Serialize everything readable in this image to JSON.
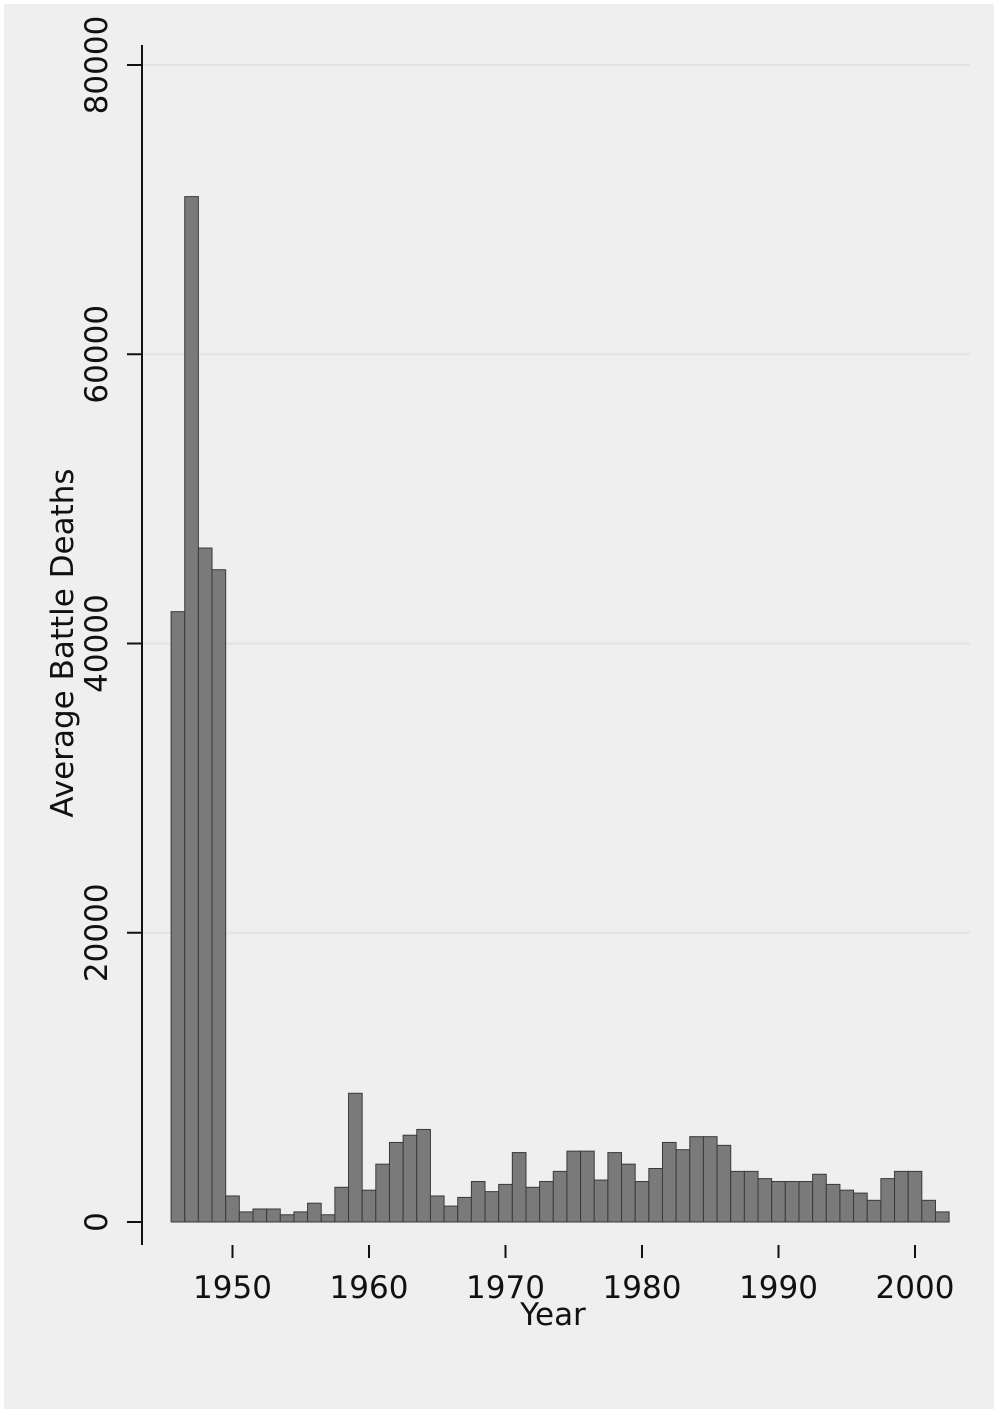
{
  "chart_data": {
    "type": "bar",
    "title": "",
    "xlabel": "Year",
    "ylabel": "Average Battle Deaths",
    "xlim": [
      1945.5,
      2002.5
    ],
    "ylim": [
      0,
      80000
    ],
    "x_ticks": [
      1950,
      1960,
      1970,
      1980,
      1990,
      2000
    ],
    "y_ticks": [
      0,
      20000,
      40000,
      60000,
      80000
    ],
    "grid": true,
    "legend": "none",
    "colors": {
      "bar": "#7a7a7a",
      "bar_edge": "#3a3a3a",
      "background": "#efefef",
      "grid": "#e3e3e3",
      "axis": "#111111"
    },
    "x": [
      1946,
      1947,
      1948,
      1949,
      1950,
      1951,
      1952,
      1953,
      1954,
      1955,
      1956,
      1957,
      1958,
      1959,
      1960,
      1961,
      1962,
      1963,
      1964,
      1965,
      1966,
      1967,
      1968,
      1969,
      1970,
      1971,
      1972,
      1973,
      1974,
      1975,
      1976,
      1977,
      1978,
      1979,
      1980,
      1981,
      1982,
      1983,
      1984,
      1985,
      1986,
      1987,
      1988,
      1989,
      1990,
      1991,
      1992,
      1993,
      1994,
      1995,
      1996,
      1997,
      1998,
      1999,
      2000,
      2001,
      2002
    ],
    "values": [
      42200,
      70900,
      46600,
      45100,
      1800,
      700,
      900,
      900,
      500,
      700,
      1300,
      500,
      2400,
      8900,
      2200,
      4000,
      5500,
      6000,
      6400,
      1800,
      1100,
      1700,
      2800,
      2100,
      2600,
      4800,
      2400,
      2800,
      3500,
      4900,
      4900,
      2900,
      4800,
      4000,
      2800,
      3700,
      5500,
      5000,
      5900,
      5900,
      5300,
      3500,
      3500,
      3000,
      2800,
      2800,
      2800,
      3300,
      2600,
      2200,
      2000,
      1500,
      3000,
      3500,
      3500,
      1500,
      700
    ]
  }
}
